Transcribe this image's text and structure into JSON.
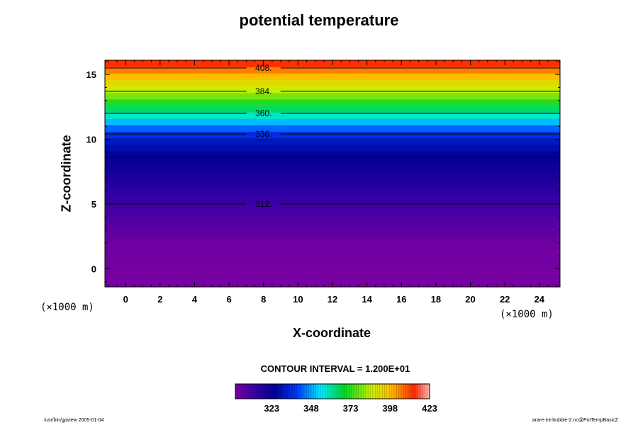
{
  "chart_data": {
    "type": "heatmap",
    "title": "potential temperature",
    "xlabel": "X-coordinate",
    "ylabel": "Z-coordinate",
    "x_unit": "(×1000 m)",
    "xlim": [
      -1.2,
      25.2
    ],
    "ylim": [
      -1.4,
      16.1
    ],
    "x_ticks": [
      "0",
      "2",
      "4",
      "6",
      "8",
      "10",
      "12",
      "14",
      "16",
      "18",
      "20",
      "22",
      "24"
    ],
    "y_ticks": [
      "0",
      "5",
      "10",
      "15"
    ],
    "contour_interval": "CONTOUR INTERVAL = 1.200E+01",
    "color_levels": {
      "min": 300,
      "max": 423,
      "ticks": [
        "323",
        "348",
        "373",
        "398",
        "423"
      ]
    },
    "profile": {
      "z": [
        -1.4,
        1.9,
        3.2,
        5.0,
        8.6,
        10.0,
        10.4,
        12.0,
        13.7,
        15.6,
        16.1
      ],
      "theta": [
        300,
        302,
        306,
        312,
        324,
        331,
        336,
        360,
        384,
        408,
        417
      ]
    },
    "contours": [
      {
        "z": 5.0,
        "label": "312."
      },
      {
        "z": 8.6,
        "label": ""
      },
      {
        "z": 10.4,
        "label": "336."
      },
      {
        "z": 12.0,
        "label": "360."
      },
      {
        "z": 13.7,
        "label": "384."
      },
      {
        "z": 15.5,
        "label": "408."
      }
    ],
    "contour_label_x": 8
  },
  "footer": {
    "left": "/usr/bin/gpview 2005-01-04",
    "right": "arare-int-bubble-2.nc@PotTempBasicZ"
  }
}
